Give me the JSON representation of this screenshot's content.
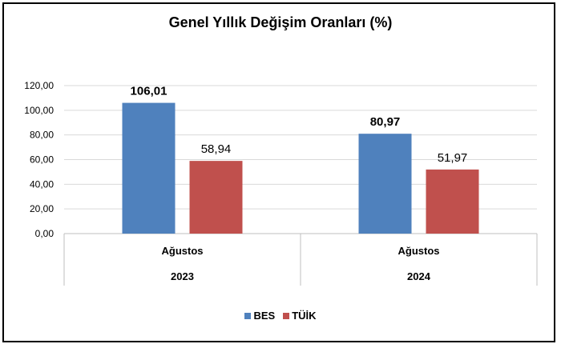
{
  "chart_data": {
    "type": "bar",
    "title": "Genel Yıllık Değişim Oranları (%)",
    "groups": [
      {
        "category": "Ağustos",
        "year": "2023"
      },
      {
        "category": "Ağustos",
        "year": "2024"
      }
    ],
    "series": [
      {
        "name": "BES",
        "color": "#4f81bd",
        "values": [
          106.01,
          80.97
        ],
        "labels": [
          "106,01",
          "80,97"
        ]
      },
      {
        "name": "TÜİK",
        "color": "#c0504d",
        "values": [
          58.94,
          51.97
        ],
        "labels": [
          "58,94",
          "51,97"
        ]
      }
    ],
    "ylim": [
      0,
      120
    ],
    "yticks": [
      "0,00",
      "20,00",
      "40,00",
      "60,00",
      "80,00",
      "100,00",
      "120,00"
    ],
    "grid": true,
    "legend_position": "bottom"
  }
}
